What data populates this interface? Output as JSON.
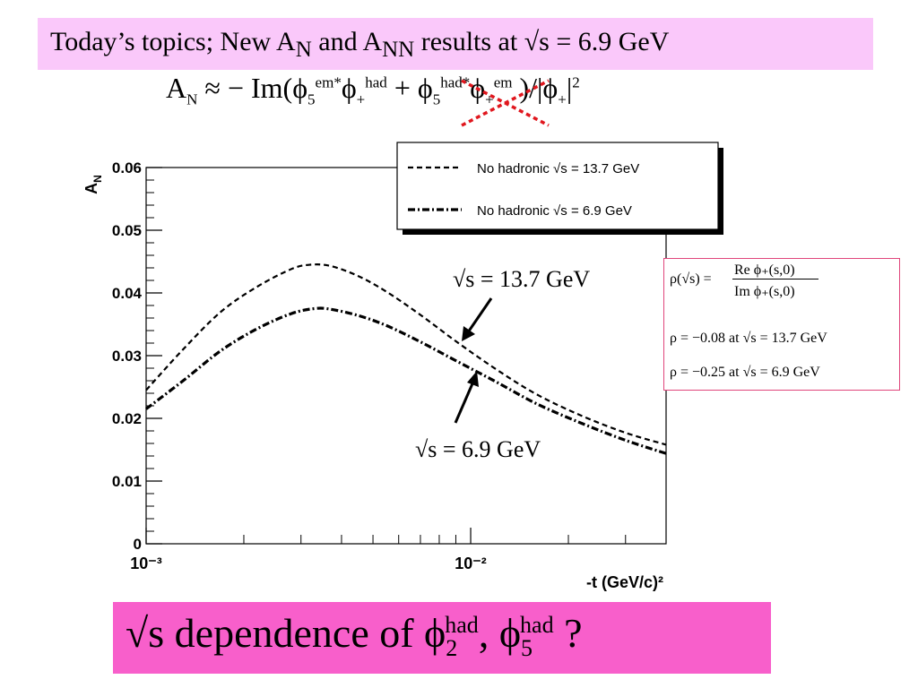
{
  "title": {
    "p1": "Today’s topics; New A",
    "sub1": "N",
    "p2": " and A",
    "sub2": "NN",
    "p3": " results at √s = 6.9 GeV"
  },
  "formula": {
    "lhs": "A",
    "lhs_sub": "N",
    "rel": " ≈ − Im(",
    "t1": "ϕ",
    "t1_sub": "5",
    "t1_sup": "em*",
    "t2": "ϕ",
    "t2_sub": "+",
    "t2_sup": "had",
    "plus": " + ",
    "t3": "ϕ",
    "t3_sub": "5",
    "t3_sup": "had*",
    "t4": "ϕ",
    "t4_sub": "+",
    "t4_sup": "em",
    "close": " )/|ϕ",
    "den_sub": "+",
    "den_close": "|",
    "den_sup": "2"
  },
  "annotations": {
    "label_137": "√s = 13.7 GeV",
    "label_69": "√s = 6.9 GeV"
  },
  "rho_box": {
    "def_lhs": "ρ(√s) =",
    "def_num": "Re ϕ₊(s,0)",
    "def_den": "Im ϕ₊(s,0)",
    "line1": "ρ = −0.08 at √s = 13.7 GeV",
    "line2": "ρ = −0.25 at √s = 6.9 GeV"
  },
  "bottom": {
    "p1": "√s dependence of ϕ",
    "sub1": "2",
    "sup1": "had",
    "p2": ", ϕ",
    "sub2": "5",
    "sup2": "had",
    "p3": " ?"
  },
  "colors": {
    "title_bg": "#fac8fa",
    "bottom_bg": "#f85fcb",
    "cross": "#e0171e",
    "rho_border": "#e0457b"
  },
  "chart_data": {
    "type": "line",
    "xlabel": "-t (GeV/c)²",
    "ylabel": "A_N",
    "x_scale": "log",
    "xlim": [
      0.001,
      0.04
    ],
    "ylim": [
      0,
      0.06
    ],
    "x_tick_labels": [
      "10⁻³",
      "10⁻²"
    ],
    "y_tick_labels": [
      "0",
      "0.01",
      "0.02",
      "0.03",
      "0.04",
      "0.05",
      "0.06"
    ],
    "legend_position": "top-right",
    "series": [
      {
        "name": "No hadronic √s = 13.7 GeV",
        "style": "dashed",
        "x": [
          0.001,
          0.0013,
          0.0017,
          0.0022,
          0.0028,
          0.0032,
          0.0037,
          0.0045,
          0.0055,
          0.007,
          0.009,
          0.012,
          0.016,
          0.022,
          0.03,
          0.04
        ],
        "y": [
          0.0245,
          0.031,
          0.037,
          0.041,
          0.0438,
          0.0445,
          0.0443,
          0.0427,
          0.0402,
          0.0365,
          0.0323,
          0.0278,
          0.0238,
          0.0204,
          0.0177,
          0.0158
        ]
      },
      {
        "name": "No hadronic √s = 6.9 GeV",
        "style": "dash-dot",
        "x": [
          0.001,
          0.0013,
          0.0017,
          0.0022,
          0.0028,
          0.0033,
          0.0037,
          0.0045,
          0.0055,
          0.007,
          0.009,
          0.012,
          0.016,
          0.022,
          0.03,
          0.04
        ],
        "y": [
          0.0215,
          0.026,
          0.0308,
          0.0343,
          0.0367,
          0.0375,
          0.0374,
          0.0364,
          0.0348,
          0.0322,
          0.0292,
          0.0258,
          0.0223,
          0.0192,
          0.0165,
          0.0144
        ]
      }
    ]
  }
}
